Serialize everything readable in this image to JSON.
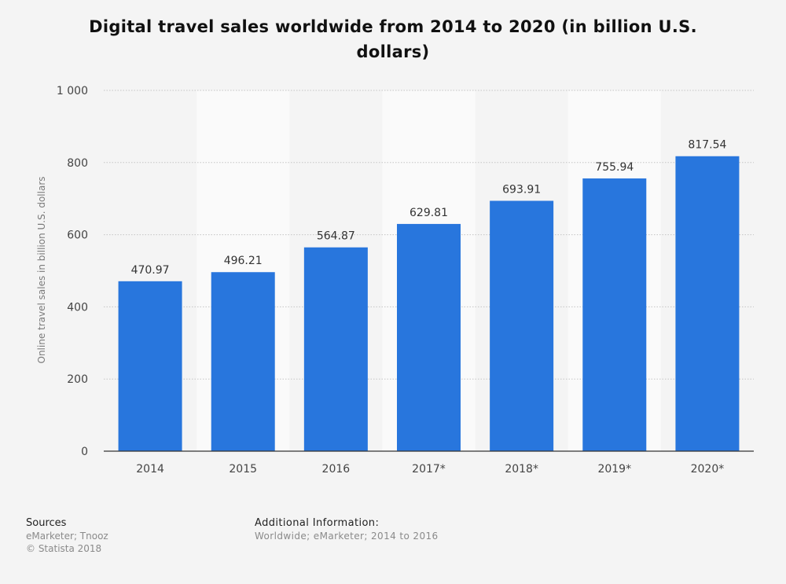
{
  "chart_data": {
    "type": "bar",
    "title": "Digital travel sales worldwide from 2014 to 2020 (in billion U.S. dollars)",
    "xlabel": "",
    "ylabel": "Online travel sales in billion U.S. dollars",
    "categories": [
      "2014",
      "2015",
      "2016",
      "2017*",
      "2018*",
      "2019*",
      "2020*"
    ],
    "values": [
      470.97,
      496.21,
      564.87,
      629.81,
      693.91,
      755.94,
      817.54
    ],
    "value_labels": [
      "470.97",
      "496.21",
      "564.87",
      "629.81",
      "693.91",
      "755.94",
      "817.54"
    ],
    "ylim": [
      0,
      1000
    ],
    "yticks": [
      0,
      200,
      400,
      600,
      800,
      1000
    ],
    "ytick_labels": [
      "0",
      "200",
      "400",
      "600",
      "800",
      "1 000"
    ],
    "grid": true,
    "legend": "none",
    "bar_color": "#2876dd"
  },
  "footer": {
    "sources_heading": "Sources",
    "sources_line1": "eMarketer; Tnooz",
    "sources_line2": "© Statista 2018",
    "info_heading": "Additional Information:",
    "info_text": "Worldwide; eMarketer; 2014 to 2016"
  }
}
